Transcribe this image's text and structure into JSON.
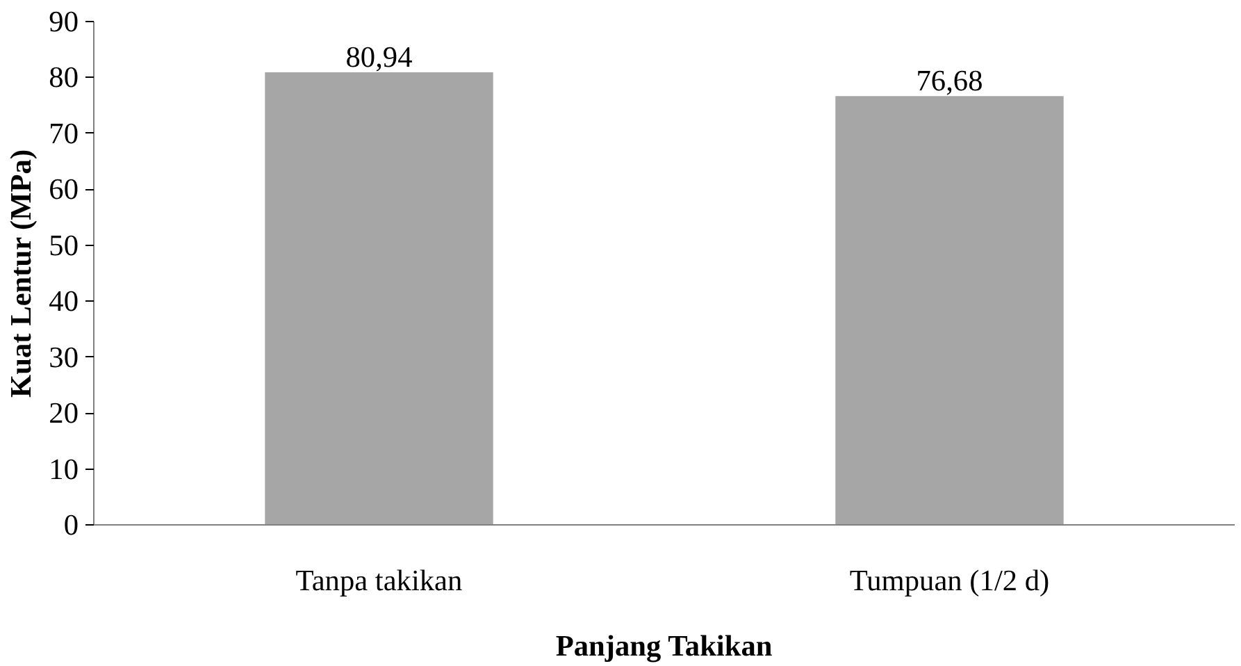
{
  "chart_data": {
    "type": "bar",
    "xlabel": "Panjang Takikan",
    "ylabel": "Kuat Lentur (MPa)",
    "categories": [
      "Tanpa takikan",
      "Tumpuan (1/2 d)"
    ],
    "values": [
      80.94,
      76.68
    ],
    "value_labels": [
      "80,94",
      "76,68"
    ],
    "color": "#a6a6a6",
    "ylim": [
      0,
      90
    ],
    "yticks": [
      0,
      10,
      20,
      30,
      40,
      50,
      60,
      70,
      80,
      90
    ],
    "grid": false
  }
}
